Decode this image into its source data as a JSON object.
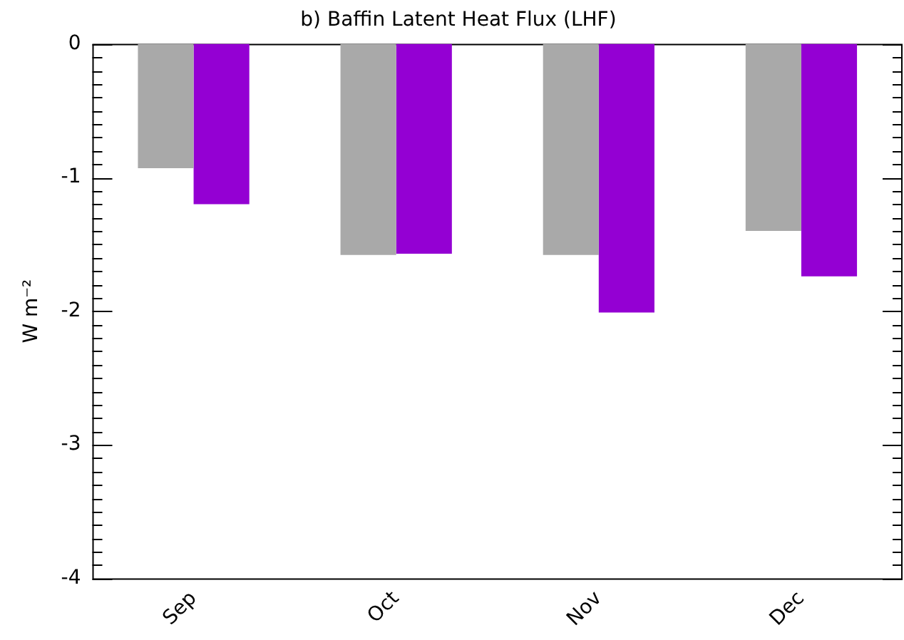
{
  "chart_data": {
    "type": "bar",
    "title": "b) Baffin Latent Heat Flux (LHF)",
    "ylabel": "W m⁻²",
    "categories": [
      "Sep",
      "Oct",
      "Nov",
      "Dec"
    ],
    "series": [
      {
        "color": "#a9a9a9",
        "values": [
          -0.93,
          -1.58,
          -1.58,
          -1.4
        ]
      },
      {
        "color": "#9400d3",
        "values": [
          -1.2,
          -1.57,
          -2.01,
          -1.74
        ]
      }
    ],
    "ylim": [
      -4,
      0
    ],
    "yticks": [
      0,
      {
        "value": -0.1,
        "label": null
      },
      {
        "value": -0.2,
        "label": null
      },
      {
        "value": -0.3,
        "label": null
      },
      {
        "value": -0.4,
        "label": null
      },
      {
        "value": -0.5,
        "label": null
      },
      {
        "value": -0.6,
        "label": null
      },
      {
        "value": -0.7,
        "label": null
      },
      {
        "value": -0.8,
        "label": null
      },
      {
        "value": -0.9,
        "label": null
      },
      -1,
      {
        "value": -1.1,
        "label": null
      },
      {
        "value": -1.2,
        "label": null
      },
      {
        "value": -1.3,
        "label": null
      },
      {
        "value": -1.4,
        "label": null
      },
      {
        "value": -1.5,
        "label": null
      },
      {
        "value": -1.6,
        "label": null
      },
      {
        "value": -1.7,
        "label": null
      },
      {
        "value": -1.8,
        "label": null
      },
      {
        "value": -1.9,
        "label": null
      },
      -2,
      {
        "value": -2.1,
        "label": null
      },
      {
        "value": -2.2,
        "label": null
      },
      {
        "value": -2.3,
        "label": null
      },
      {
        "value": -2.4,
        "label": null
      },
      {
        "value": -2.5,
        "label": null
      },
      {
        "value": -2.6,
        "label": null
      },
      {
        "value": -2.7,
        "label": null
      },
      {
        "value": -2.8,
        "label": null
      },
      {
        "value": -2.9,
        "label": null
      },
      -3,
      {
        "value": -3.1,
        "label": null
      },
      {
        "value": -3.2,
        "label": null
      },
      {
        "value": -3.3,
        "label": null
      },
      {
        "value": -3.4,
        "label": null
      },
      {
        "value": -3.5,
        "label": null
      },
      {
        "value": -3.6,
        "label": null
      },
      {
        "value": -3.7,
        "label": null
      },
      {
        "value": -3.8,
        "label": null
      },
      {
        "value": -3.9,
        "label": null
      },
      -4
    ],
    "grid": false,
    "legend": false
  }
}
